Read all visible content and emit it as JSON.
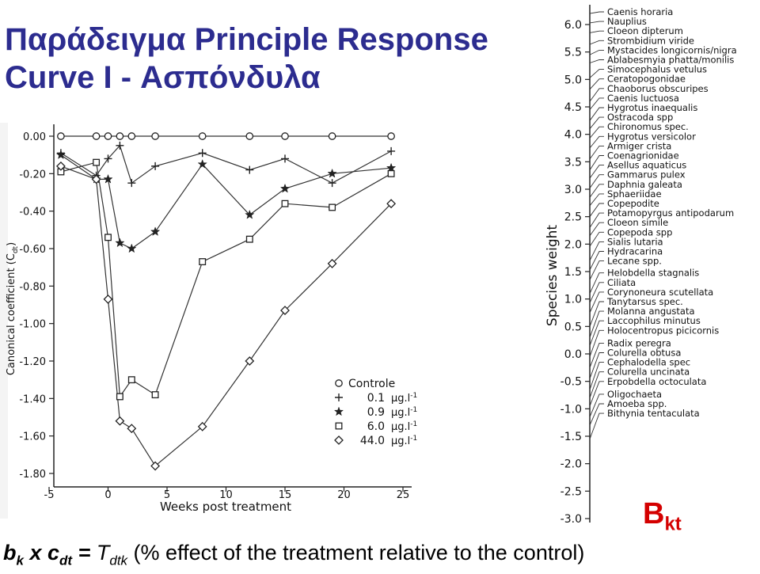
{
  "slide": {
    "title_line1": "Παράδειγμα Principle Response",
    "title_line2": "Curve I - Ασπόνδυλα",
    "bkt_main": "B",
    "bkt_sub": "kt",
    "formula": {
      "b": "b",
      "b_sub": "k",
      "x": " x ",
      "c": "c",
      "c_sub": "dt",
      "eq": " = ",
      "T": "T",
      "T_sub": "dtk",
      "paren_open": " (",
      "desc": "% effect of the treatment relative to the control",
      "paren_close": ")"
    }
  },
  "chart_data": [
    {
      "type": "line",
      "xlabel": "Weeks post treatment",
      "ylabel": "Canonical coefficient (C",
      "ylabel_sub": "dt",
      "ylabel_close": ")",
      "xlim": [
        -5,
        25
      ],
      "ylim": [
        -1.9,
        0.05
      ],
      "xticks": [
        -5,
        0,
        5,
        10,
        15,
        20,
        25
      ],
      "yticks": [
        "0.00",
        "-0.20",
        "-0.40",
        "-0.60",
        "-0.80",
        "-1.00",
        "-1.20",
        "-1.40",
        "-1.60",
        "-1.80"
      ],
      "ytick_values": [
        0,
        -0.2,
        -0.4,
        -0.6,
        -0.8,
        -1.0,
        -1.2,
        -1.4,
        -1.6,
        -1.8
      ],
      "legend_position": "bottom-right",
      "unit_main": "µg.l",
      "unit_exp": "-1",
      "series": [
        {
          "name": "Controle",
          "dose": "",
          "marker": "circle",
          "x": [
            -4,
            -1,
            0,
            1,
            2,
            4,
            8,
            12,
            15,
            19,
            24
          ],
          "y": [
            0,
            0,
            0,
            0,
            0,
            0,
            0,
            0,
            0,
            0,
            0
          ]
        },
        {
          "name": "",
          "dose": "0.1",
          "marker": "plus",
          "x": [
            -4,
            -1,
            0,
            1,
            2,
            4,
            8,
            12,
            15,
            19,
            24
          ],
          "y": [
            -0.09,
            -0.21,
            -0.12,
            -0.05,
            -0.25,
            -0.16,
            -0.09,
            -0.18,
            -0.12,
            -0.25,
            -0.08
          ]
        },
        {
          "name": "",
          "dose": "0.9",
          "marker": "star",
          "x": [
            -4,
            -1,
            0,
            1,
            2,
            4,
            8,
            12,
            15,
            19,
            24
          ],
          "y": [
            -0.1,
            -0.23,
            -0.23,
            -0.57,
            -0.6,
            -0.51,
            -0.15,
            -0.42,
            -0.28,
            -0.2,
            -0.17
          ]
        },
        {
          "name": "",
          "dose": "6.0",
          "marker": "square",
          "x": [
            -4,
            -1,
            0,
            1,
            2,
            4,
            8,
            12,
            15,
            19,
            24
          ],
          "y": [
            -0.19,
            -0.14,
            -0.54,
            -1.39,
            -1.3,
            -1.38,
            -0.67,
            -0.55,
            -0.36,
            -0.38,
            -0.2
          ]
        },
        {
          "name": "",
          "dose": "44.0",
          "marker": "diamond",
          "x": [
            -4,
            -1,
            0,
            1,
            2,
            4,
            8,
            12,
            15,
            19,
            24
          ],
          "y": [
            -0.16,
            -0.23,
            -0.87,
            -1.52,
            -1.56,
            -1.76,
            -1.55,
            -1.2,
            -0.93,
            -0.68,
            -0.36
          ]
        }
      ]
    },
    {
      "type": "scatter",
      "ylabel": "Species weight",
      "ylim": [
        -3.0,
        6.0
      ],
      "yticks": [
        "6.0",
        "5.5",
        "5.0",
        "4.5",
        "4.0",
        "3.5",
        "3.0",
        "2.5",
        "2.0",
        "1.5",
        "1.0",
        "0.5",
        "0.0",
        "-0.5",
        "-1.0",
        "-1.5",
        "-2.0",
        "-2.5",
        "-3.0"
      ],
      "ytick_values": [
        6.0,
        5.5,
        5.0,
        4.5,
        4.0,
        3.5,
        3.0,
        2.5,
        2.0,
        1.5,
        1.0,
        0.5,
        0.0,
        -0.5,
        -1.0,
        -1.5,
        -2.0,
        -2.5,
        -3.0
      ],
      "species": [
        {
          "name": "Caenis horaria",
          "w": 6.2
        },
        {
          "name": "Nauplius",
          "w": 6.03
        },
        {
          "name": "Cloeon dipterum",
          "w": 5.85
        },
        {
          "name": "Strombidium viride",
          "w": 5.64
        },
        {
          "name": "Mystacides longicornis/nigra",
          "w": 5.45
        },
        {
          "name": "Ablabesmyia phatta/monilis",
          "w": 5.3
        },
        {
          "name": "Simocephalus vetulus",
          "w": 5.03
        },
        {
          "name": "Ceratopogonidae",
          "w": 4.82
        },
        {
          "name": "Chaoborus obscuripes",
          "w": 4.6
        },
        {
          "name": "Caenis luctuosa",
          "w": 4.45
        },
        {
          "name": "Hygrotus inaequalis",
          "w": 4.25
        },
        {
          "name": "Ostracoda spp",
          "w": 4.1
        },
        {
          "name": "Chironomus spec.",
          "w": 3.93
        },
        {
          "name": "Hygrotus versicolor",
          "w": 3.75
        },
        {
          "name": "Armiger crista",
          "w": 3.55
        },
        {
          "name": "Coenagrionidae",
          "w": 3.35
        },
        {
          "name": "Asellus aquaticus",
          "w": 3.2
        },
        {
          "name": "Gammarus pulex",
          "w": 3.02
        },
        {
          "name": "Daphnia galeata",
          "w": 2.85
        },
        {
          "name": "Sphaeriidae",
          "w": 2.7
        },
        {
          "name": "Copepodite",
          "w": 2.5
        },
        {
          "name": "Potamopyrgus antipodarum",
          "w": 2.3
        },
        {
          "name": "Cloeon simile",
          "w": 2.15
        },
        {
          "name": "Copepoda spp",
          "w": 1.96
        },
        {
          "name": "Sialis lutaria",
          "w": 1.7
        },
        {
          "name": "Hydracarina",
          "w": 1.53
        },
        {
          "name": "Lecane spp.",
          "w": 1.35
        },
        {
          "name": "Helobdella stagnalis",
          "w": 1.1
        },
        {
          "name": "Ciliata",
          "w": 0.93
        },
        {
          "name": "Corynoneura scutellata",
          "w": 0.75
        },
        {
          "name": "Tanytarsus spec.",
          "w": 0.5
        },
        {
          "name": "Molanna angustata",
          "w": 0.3
        },
        {
          "name": "Laccophilus minutus",
          "w": 0.15
        },
        {
          "name": "Holocentropus picicornis",
          "w": -0.05
        },
        {
          "name": "Radix peregra",
          "w": -0.25
        },
        {
          "name": "Colurella obtusa",
          "w": -0.45
        },
        {
          "name": "Cephalodella spec",
          "w": -0.65
        },
        {
          "name": "Colurella uncinata",
          "w": -0.8
        },
        {
          "name": "Erpobdella octoculata",
          "w": -0.95
        },
        {
          "name": "Oligochaeta",
          "w": -1.15
        },
        {
          "name": "Amoeba spp.",
          "w": -1.3
        },
        {
          "name": "Bithynia tentaculata",
          "w": -1.55
        }
      ]
    }
  ]
}
